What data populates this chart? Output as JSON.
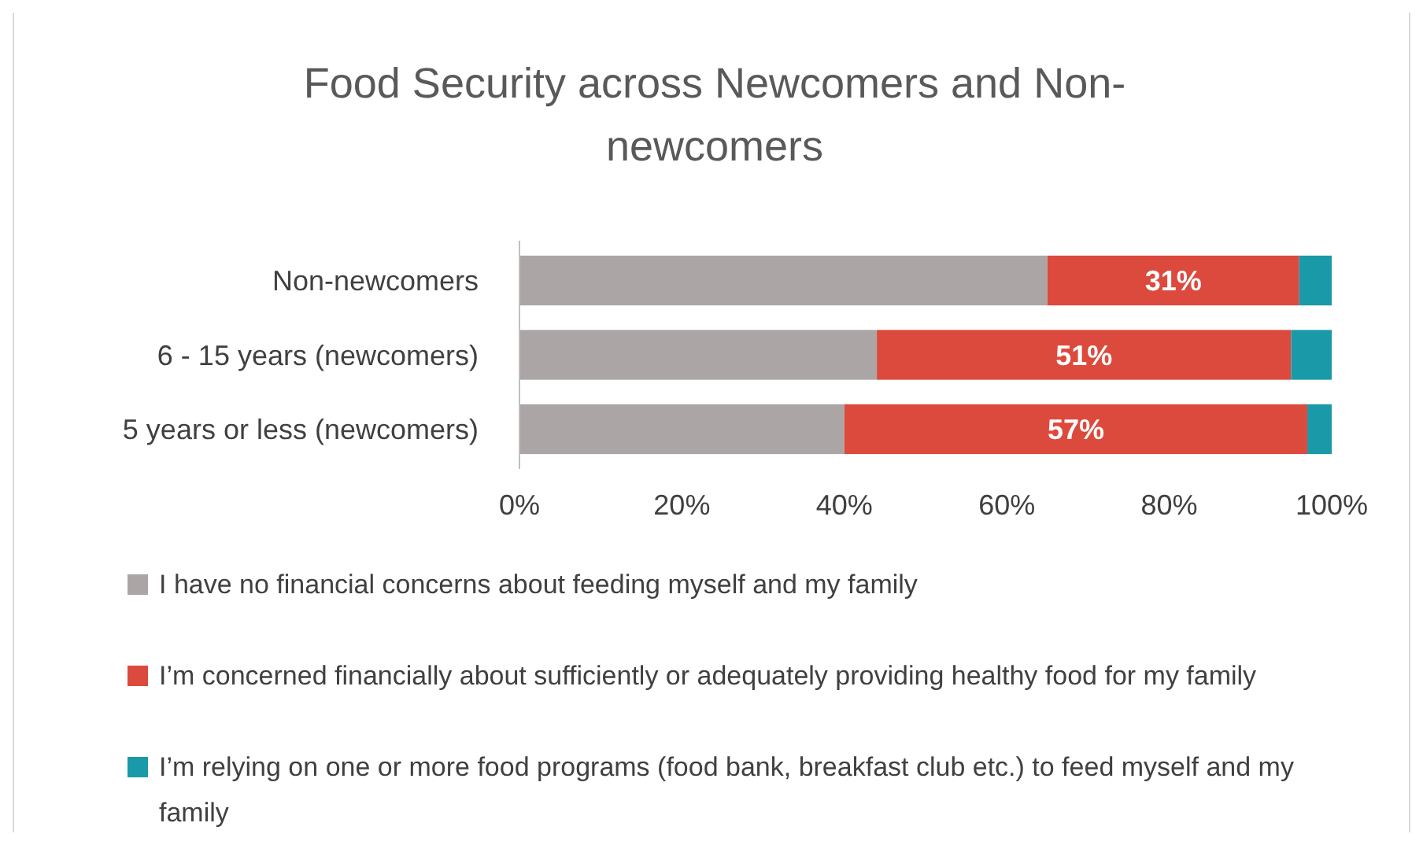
{
  "chart_data": {
    "type": "bar",
    "orientation": "horizontal",
    "stacked": true,
    "title": "Food Security across Newcomers and Non-newcomers",
    "categories": [
      "Non-newcomers",
      "6 - 15 years (newcomers)",
      "5 years or less (newcomers)"
    ],
    "series": [
      {
        "name": "I have no financial concerns about feeding myself and my family",
        "color": "#aba6a5",
        "values": [
          65,
          44,
          40
        ]
      },
      {
        "name": "I’m concerned financially about sufficiently or adequately providing healthy food for my family",
        "color": "#dc4a3d",
        "values": [
          31,
          51,
          57
        ],
        "value_labels": [
          "31%",
          "51%",
          "57%"
        ]
      },
      {
        "name": "I’m relying on one or more food programs (food bank, breakfast club etc.) to feed myself and my family",
        "color": "#1a9aa8",
        "values": [
          4,
          5,
          3
        ]
      }
    ],
    "xlim": [
      0,
      100
    ],
    "xticks": [
      {
        "value": 0,
        "label": "0%"
      },
      {
        "value": 20,
        "label": "20%"
      },
      {
        "value": 40,
        "label": "40%"
      },
      {
        "value": 60,
        "label": "60%"
      },
      {
        "value": 80,
        "label": "80%"
      },
      {
        "value": 100,
        "label": "100%"
      }
    ],
    "grid": false,
    "legend": "bottom"
  }
}
